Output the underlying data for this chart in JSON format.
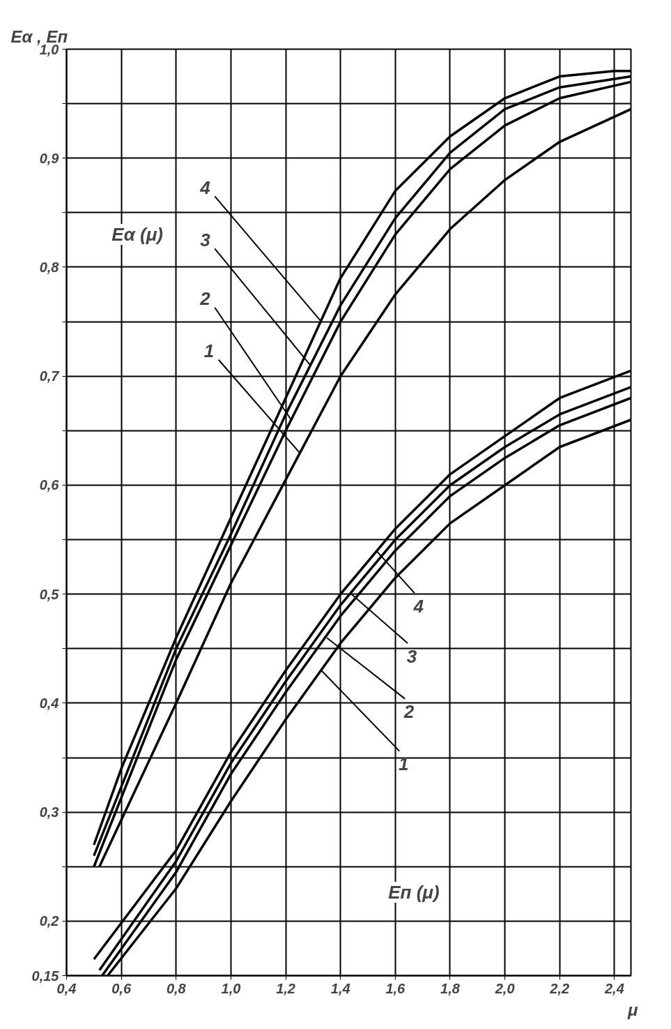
{
  "chart_data": {
    "type": "line",
    "ylabel": "Eα , Eп",
    "xlabel": "μ",
    "xlim": [
      0.4,
      2.46
    ],
    "ylim": [
      0.15,
      1.0
    ],
    "xticks": [
      {
        "value": 0.4,
        "label": "0,4"
      },
      {
        "value": 0.6,
        "label": "0,6"
      },
      {
        "value": 0.8,
        "label": "0,8"
      },
      {
        "value": 1.0,
        "label": "1,0"
      },
      {
        "value": 1.2,
        "label": "1,2"
      },
      {
        "value": 1.4,
        "label": "1,4"
      },
      {
        "value": 1.6,
        "label": "1,6"
      },
      {
        "value": 1.8,
        "label": "1,8"
      },
      {
        "value": 2.0,
        "label": "2,0"
      },
      {
        "value": 2.2,
        "label": "2,2"
      },
      {
        "value": 2.4,
        "label": "2,4"
      }
    ],
    "yticks": [
      {
        "value": 0.15,
        "label": "0,15"
      },
      {
        "value": 0.2,
        "label": "0,2"
      },
      {
        "value": 0.25,
        "label": null
      },
      {
        "value": 0.3,
        "label": "0,3"
      },
      {
        "value": 0.35,
        "label": null
      },
      {
        "value": 0.4,
        "label": "0,4"
      },
      {
        "value": 0.45,
        "label": null
      },
      {
        "value": 0.5,
        "label": "0,5"
      },
      {
        "value": 0.55,
        "label": null
      },
      {
        "value": 0.6,
        "label": "0,6"
      },
      {
        "value": 0.65,
        "label": null
      },
      {
        "value": 0.7,
        "label": "0,7"
      },
      {
        "value": 0.75,
        "label": null
      },
      {
        "value": 0.8,
        "label": "0,8"
      },
      {
        "value": 0.85,
        "label": null
      },
      {
        "value": 0.9,
        "label": "0,9"
      },
      {
        "value": 0.95,
        "label": null
      },
      {
        "value": 1.0,
        "label": "1,0"
      }
    ],
    "grid": true,
    "marker": "none",
    "line_style": "solid",
    "series": [
      {
        "color": "#000000",
        "x": [
          0.5,
          0.6,
          0.8,
          1.0,
          1.2,
          1.4,
          1.6,
          1.8,
          2.0,
          2.2,
          2.4,
          2.46
        ],
        "values": [
          0.27,
          0.34,
          0.46,
          0.57,
          0.68,
          0.79,
          0.87,
          0.92,
          0.955,
          0.975,
          0.98,
          0.98
        ]
      },
      {
        "color": "#000000",
        "x": [
          0.5,
          0.8,
          1.0,
          1.2,
          1.4,
          1.6,
          1.8,
          2.0,
          2.2,
          2.46
        ],
        "values": [
          0.26,
          0.45,
          0.555,
          0.665,
          0.765,
          0.845,
          0.905,
          0.945,
          0.965,
          0.975
        ]
      },
      {
        "color": "#000000",
        "x": [
          0.5,
          0.8,
          1.0,
          1.2,
          1.4,
          1.6,
          1.8,
          2.0,
          2.2,
          2.46
        ],
        "values": [
          0.25,
          0.44,
          0.545,
          0.65,
          0.75,
          0.83,
          0.89,
          0.93,
          0.955,
          0.97
        ]
      },
      {
        "color": "#000000",
        "x": [
          0.52,
          0.8,
          1.0,
          1.2,
          1.4,
          1.6,
          1.8,
          2.0,
          2.2,
          2.46
        ],
        "values": [
          0.25,
          0.4,
          0.51,
          0.605,
          0.7,
          0.775,
          0.835,
          0.88,
          0.915,
          0.945
        ]
      },
      {
        "color": "#000000",
        "x": [
          0.5,
          0.8,
          1.0,
          1.2,
          1.4,
          1.6,
          1.8,
          2.0,
          2.2,
          2.46
        ],
        "values": [
          0.165,
          0.265,
          0.355,
          0.43,
          0.5,
          0.56,
          0.61,
          0.645,
          0.68,
          0.705
        ]
      },
      {
        "color": "#000000",
        "x": [
          0.52,
          0.8,
          1.0,
          1.2,
          1.4,
          1.6,
          1.8,
          2.0,
          2.2,
          2.46
        ],
        "values": [
          0.155,
          0.255,
          0.345,
          0.42,
          0.49,
          0.55,
          0.6,
          0.635,
          0.665,
          0.69
        ]
      },
      {
        "color": "#000000",
        "x": [
          0.53,
          0.8,
          1.0,
          1.2,
          1.4,
          1.6,
          1.8,
          2.0,
          2.2,
          2.46
        ],
        "values": [
          0.15,
          0.245,
          0.335,
          0.41,
          0.48,
          0.54,
          0.59,
          0.625,
          0.655,
          0.68
        ]
      },
      {
        "color": "#000000",
        "x": [
          0.55,
          0.8,
          1.0,
          1.2,
          1.4,
          1.6,
          1.8,
          2.0,
          2.2,
          2.46
        ],
        "values": [
          0.15,
          0.23,
          0.31,
          0.385,
          0.455,
          0.515,
          0.565,
          0.6,
          0.635,
          0.66
        ]
      }
    ],
    "annotations": [
      {
        "text": "4",
        "x": 1.33,
        "y": 0.75
      },
      {
        "text": "3",
        "x": 1.29,
        "y": 0.71
      },
      {
        "text": "2",
        "x": 1.22,
        "y": 0.66
      },
      {
        "text": "1",
        "x": 1.25,
        "y": 0.63
      },
      {
        "text": "4",
        "x": 1.53,
        "y": 0.54
      },
      {
        "text": "3",
        "x": 1.44,
        "y": 0.5
      },
      {
        "text": "2",
        "x": 1.35,
        "y": 0.46
      },
      {
        "text": "1",
        "x": 1.33,
        "y": 0.43
      },
      "Eα (μ)",
      "Eп (μ)"
    ]
  }
}
